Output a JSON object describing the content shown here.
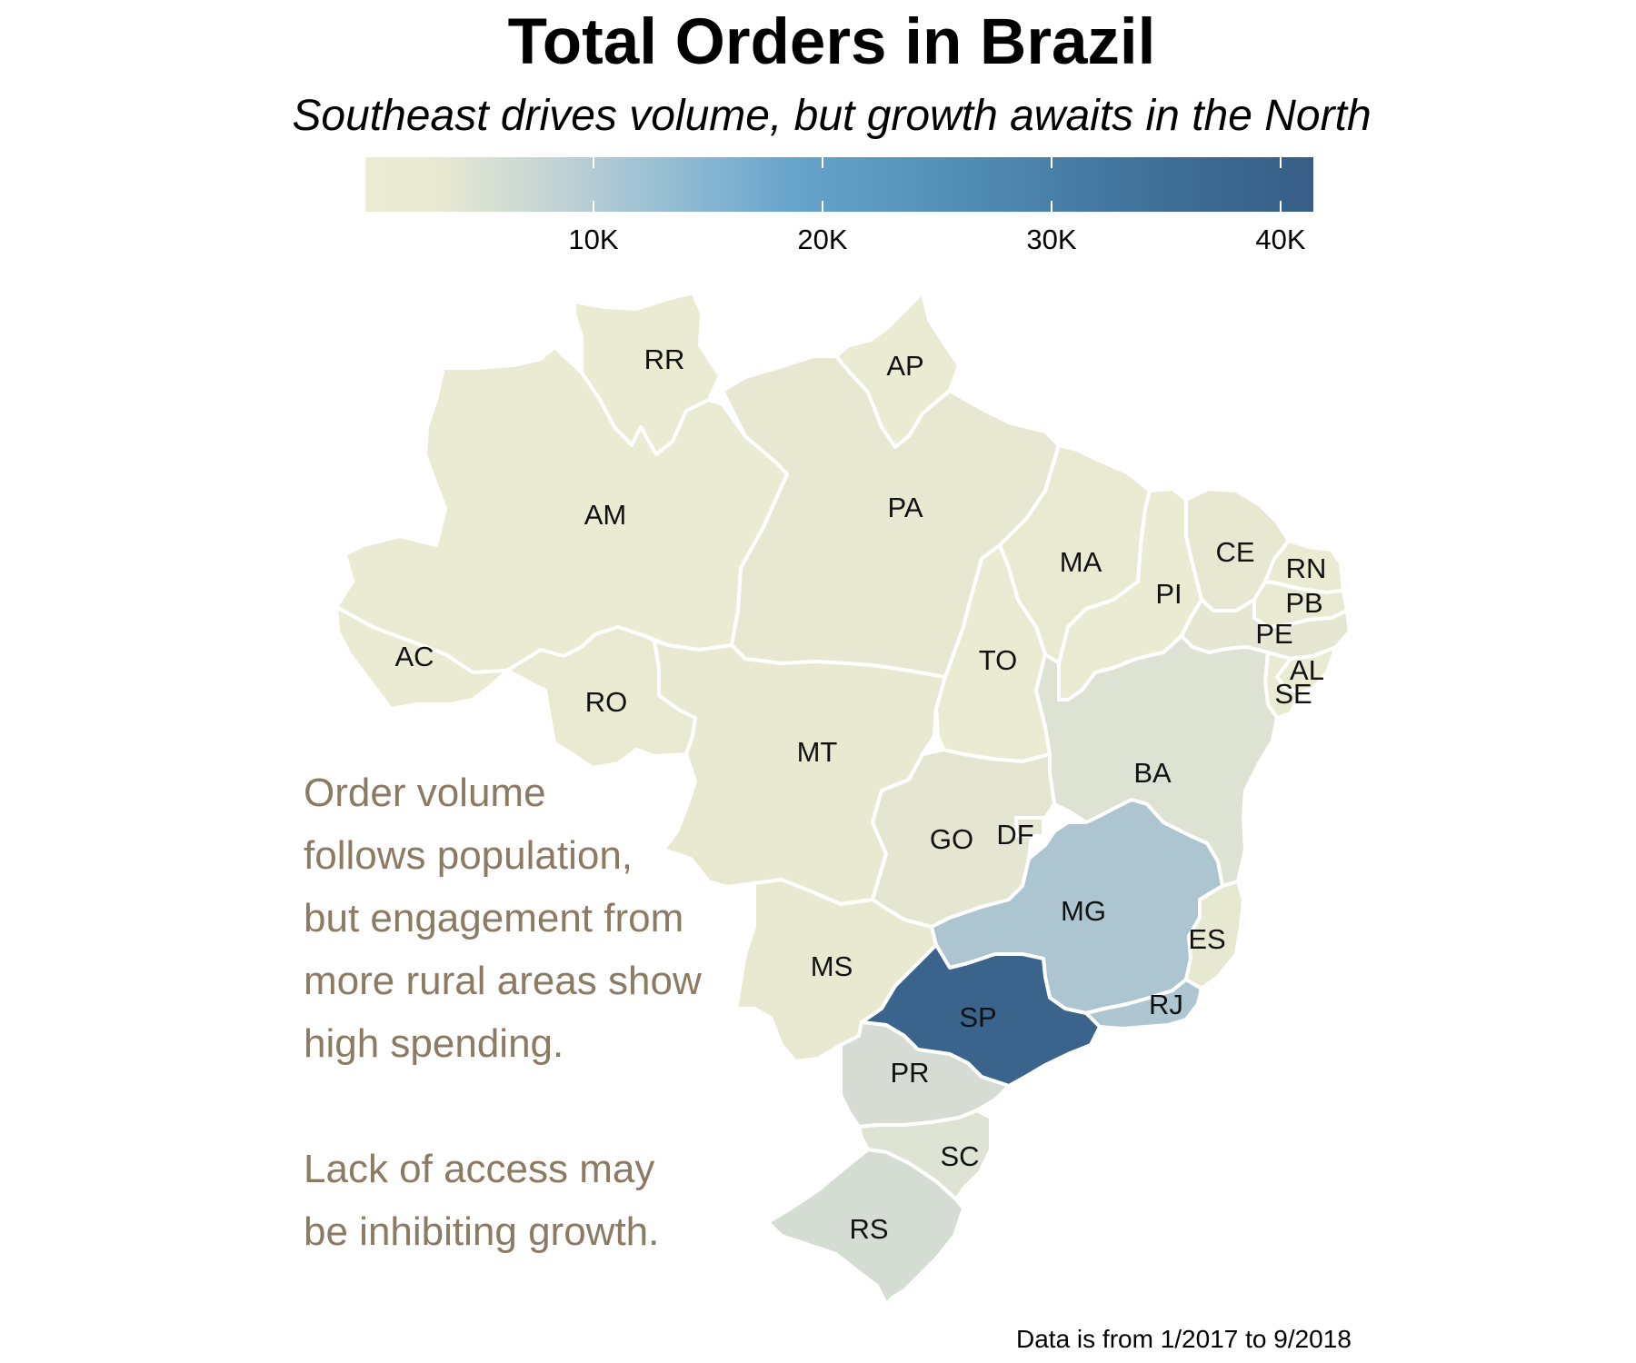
{
  "title": "Total Orders in Brazil",
  "subtitle": "Southeast drives volume, but growth awaits in the North",
  "legend": {
    "ticks": [
      "10K",
      "20K",
      "30K",
      "40K"
    ],
    "tick_values": [
      10000,
      20000,
      30000,
      40000
    ],
    "max_value": 41300,
    "colors": {
      "low": "#ececd3",
      "mid": "#67a4cc",
      "high": "#375e86"
    }
  },
  "annotation": {
    "para1": [
      "Order volume",
      "follows population,",
      "but engagement from",
      "more rural areas show",
      "high spending."
    ],
    "para2": [
      "Lack of access may",
      "be inhibiting growth."
    ]
  },
  "source": "Data is from 1/2017 to 9/2018",
  "states": {
    "RR": "#ebebd3",
    "AP": "#ebebd3",
    "AM": "#ebebd3",
    "PA": "#e8e8d2",
    "AC": "#ebebd3",
    "RO": "#eaead3",
    "MT": "#e9e9d2",
    "TO": "#ebebd3",
    "MA": "#eaead2",
    "PI": "#ebebd3",
    "CE": "#e8e8d2",
    "RN": "#ebebd3",
    "PB": "#eaead2",
    "PE": "#e5e7d2",
    "AL": "#ebebd3",
    "SE": "#ebebd3",
    "BA": "#dde2d3",
    "GO": "#e4e6d2",
    "DF": "#e5e7d2",
    "MS": "#e9e9d2",
    "MG": "#adc5d0",
    "ES": "#e6e8d2",
    "RJ": "#aec6d2",
    "SP": "#3a648c",
    "PR": "#d6dcd4",
    "SC": "#dfe3d3",
    "RS": "#d5dcd4"
  }
}
